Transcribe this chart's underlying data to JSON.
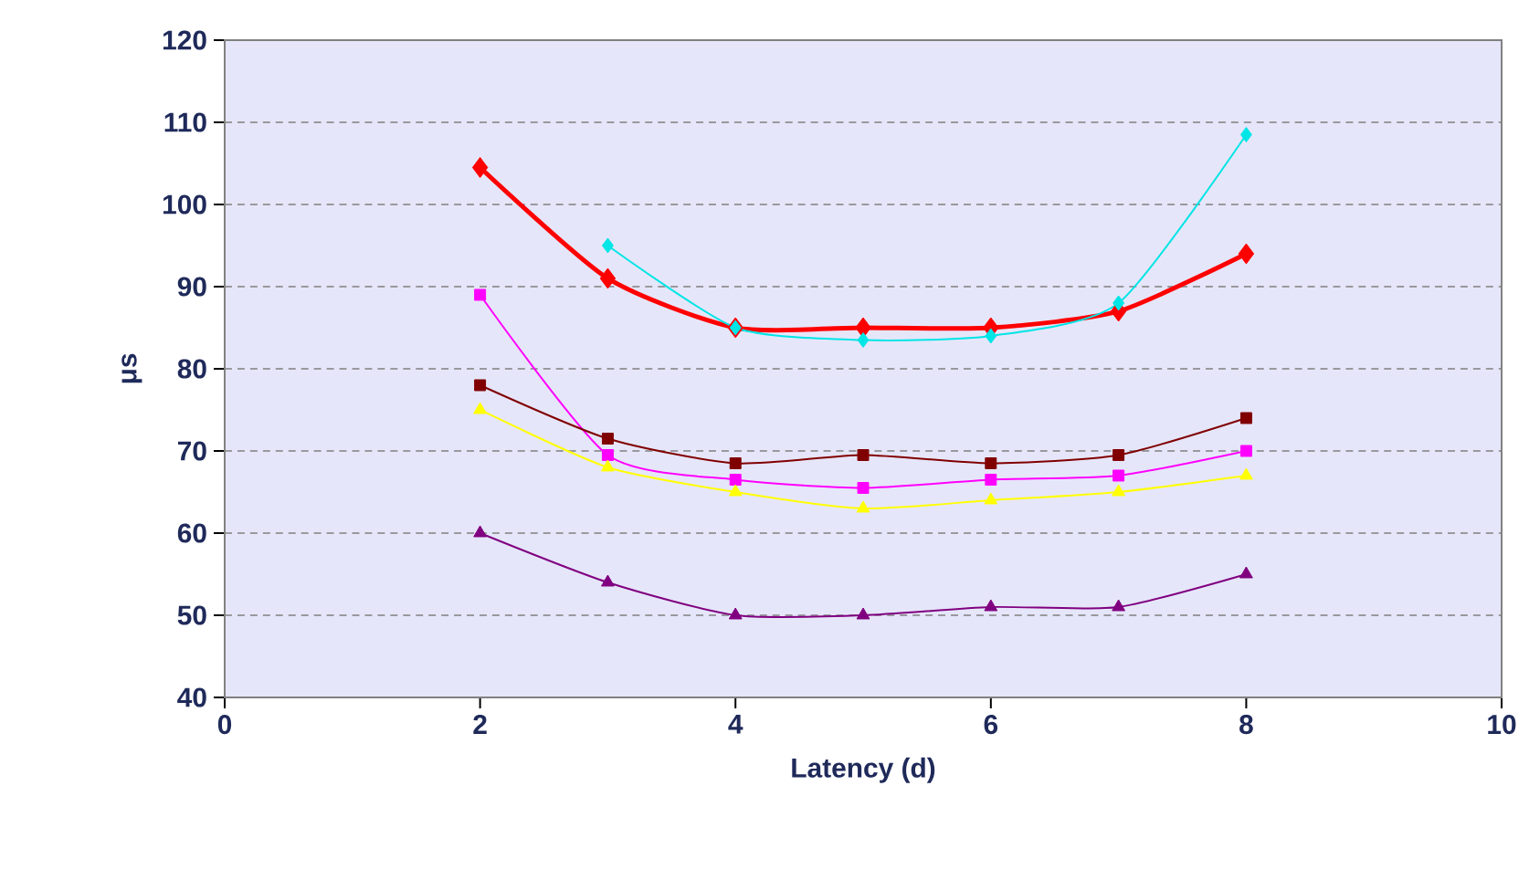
{
  "chart_data": {
    "type": "line",
    "xlabel": "Latency (d)",
    "ylabel": "μs",
    "x": [
      2,
      3,
      4,
      5,
      6,
      7,
      8
    ],
    "xlim": [
      0,
      10
    ],
    "xticks": [
      0,
      2,
      4,
      6,
      8,
      10
    ],
    "ylim": [
      40,
      120
    ],
    "yticks": [
      40,
      50,
      60,
      70,
      80,
      90,
      100,
      110,
      120
    ],
    "grid": "y",
    "line_style": "solid",
    "series": [
      {
        "color": "#ff0000",
        "marker": "diamond",
        "values": [
          104.5,
          91,
          85,
          85,
          85,
          87,
          94
        ]
      },
      {
        "color": "#00e5e5",
        "marker": "diamond",
        "values": [
          null,
          95,
          85,
          83.5,
          84,
          88,
          108.5
        ]
      },
      {
        "color": "#ff00ff",
        "marker": "square",
        "values": [
          89,
          69.5,
          66.5,
          65.5,
          66.5,
          67,
          70
        ]
      },
      {
        "color": "#800000",
        "marker": "square",
        "values": [
          78,
          71.5,
          68.5,
          69.5,
          68.5,
          69.5,
          74
        ]
      },
      {
        "color": "#ffff00",
        "marker": "triangle",
        "values": [
          75,
          68,
          65,
          63,
          64,
          65,
          67
        ]
      },
      {
        "color": "#800080",
        "marker": "triangle",
        "values": [
          60,
          54,
          50,
          50,
          51,
          51,
          55
        ]
      }
    ]
  }
}
